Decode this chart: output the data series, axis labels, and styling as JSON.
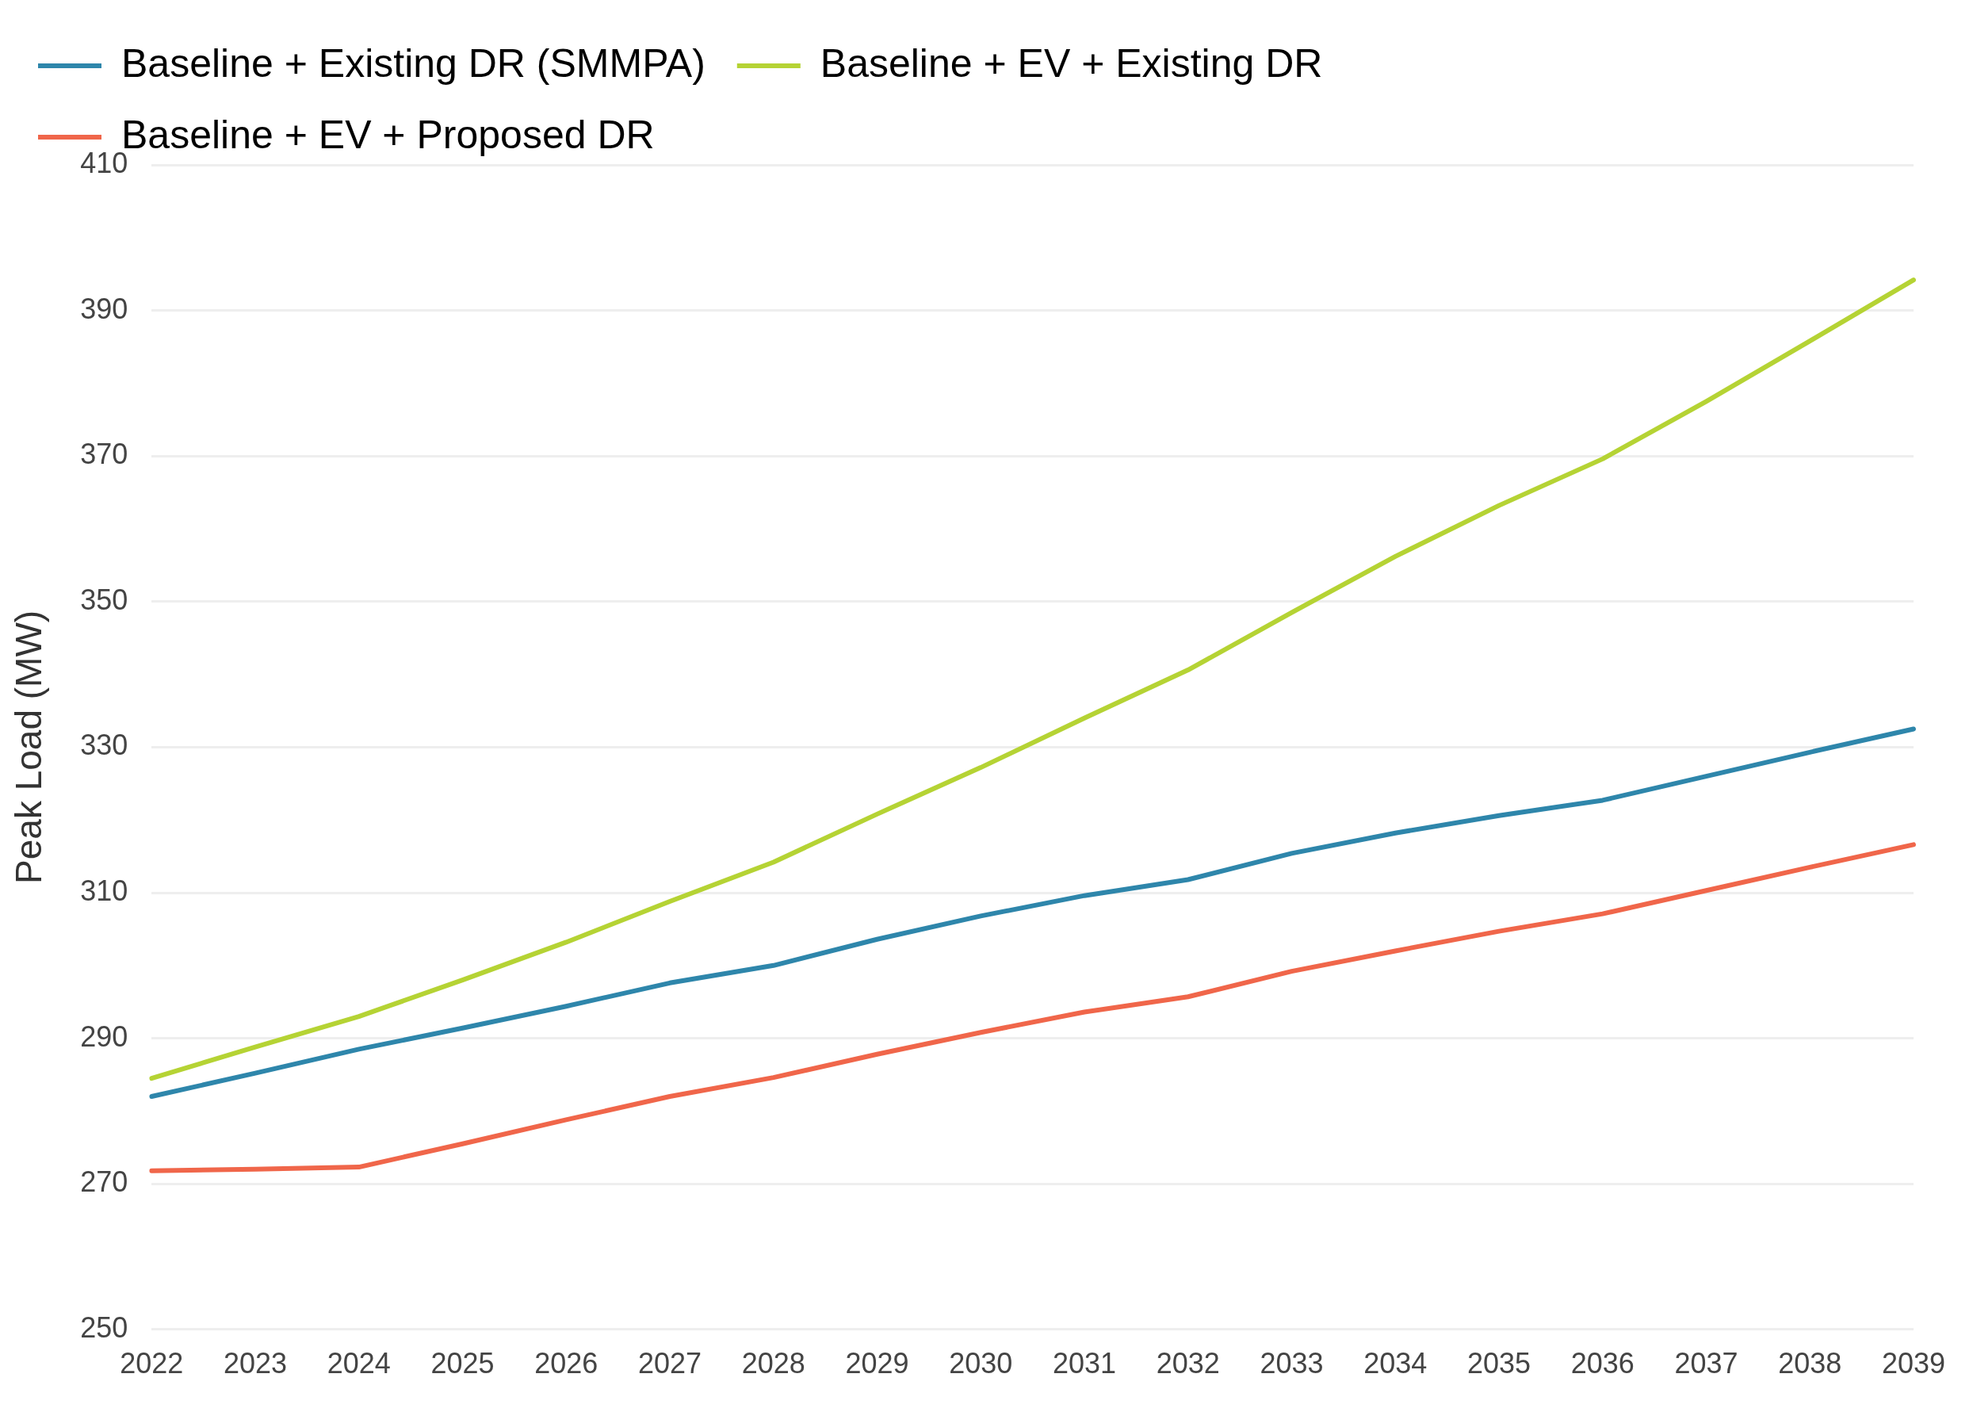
{
  "chart_data": {
    "type": "line",
    "ylabel": "Peak Load (MW)",
    "categories": [
      "2022",
      "2023",
      "2024",
      "2025",
      "2026",
      "2027",
      "2028",
      "2029",
      "2030",
      "2031",
      "2032",
      "2033",
      "2034",
      "2035",
      "2036",
      "2037",
      "2038",
      "2039"
    ],
    "series": [
      {
        "name": "Baseline + Existing DR (SMMPA)",
        "color": "#2e86ab",
        "values": [
          282,
          285.2,
          288.5,
          291.4,
          294.4,
          297.6,
          300,
          303.6,
          306.8,
          309.6,
          311.8,
          315.4,
          318.2,
          320.6,
          322.7,
          326,
          329.3,
          332.5
        ]
      },
      {
        "name": "Baseline + EV + Existing DR",
        "color": "#b5d334",
        "values": [
          284.5,
          288.8,
          293,
          298,
          303.2,
          308.8,
          314.2,
          320.8,
          327.2,
          334,
          340.6,
          348.5,
          356.2,
          363.2,
          369.6,
          377.5,
          385.8,
          394.2
        ]
      },
      {
        "name": "Baseline + EV + Proposed DR",
        "color": "#f0664a",
        "values": [
          271.8,
          272,
          272.3,
          275.5,
          278.8,
          282,
          284.6,
          287.8,
          290.8,
          293.6,
          295.7,
          299.2,
          302,
          304.7,
          307.1,
          310.3,
          313.5,
          316.6
        ]
      }
    ],
    "ylim": [
      250,
      410
    ],
    "yticks": [
      250,
      270,
      290,
      310,
      330,
      350,
      370,
      390,
      410
    ],
    "grid": "y",
    "legend": "top left",
    "marker": "none",
    "line_style": "solid"
  }
}
